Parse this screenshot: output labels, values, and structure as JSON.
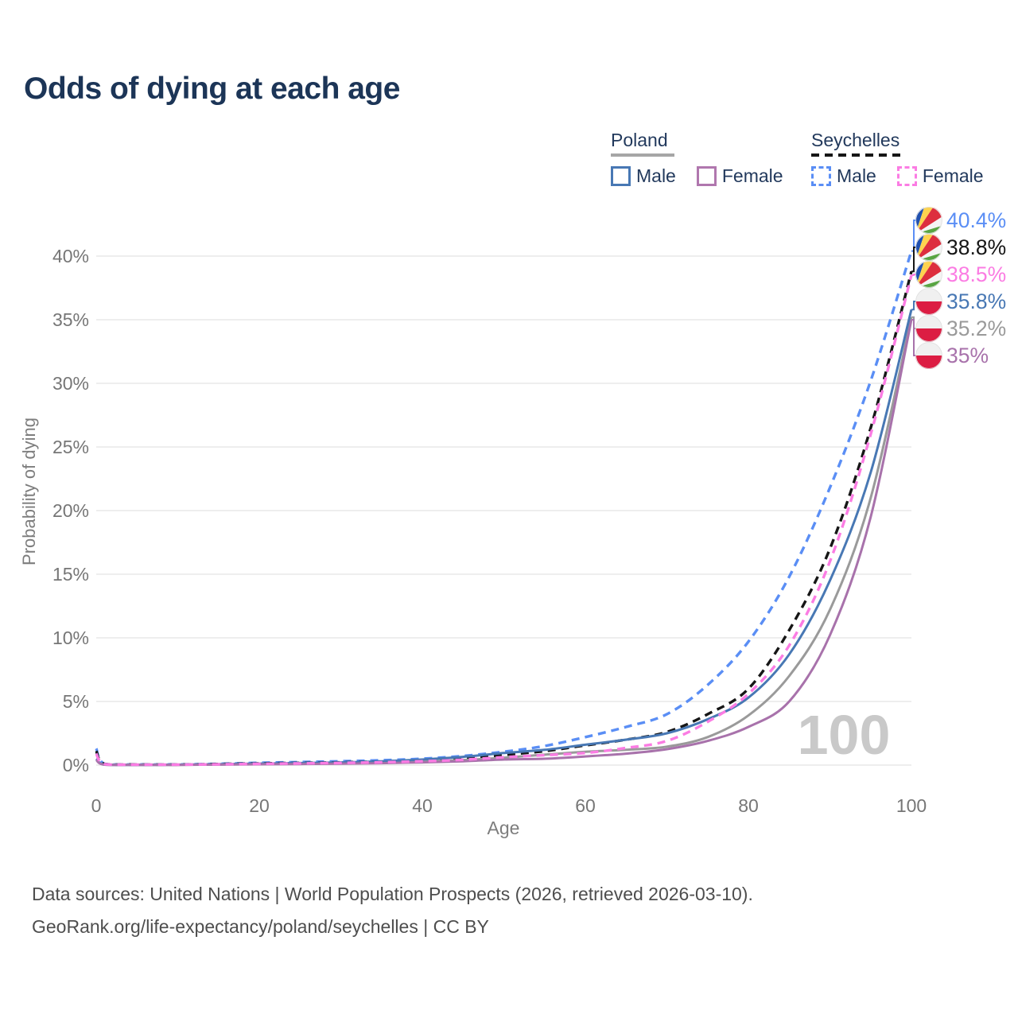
{
  "title": "Odds of dying at each age",
  "legend": {
    "poland": {
      "name": "Poland",
      "line_style": "solid",
      "underline_color": "#a6a6a6",
      "male_label": "Male",
      "female_label": "Female",
      "male_color": "#4878b4",
      "female_color": "#b077ae"
    },
    "seychelles": {
      "name": "Seychelles",
      "line_style": "dashed",
      "underline_color": "#161616",
      "male_label": "Male",
      "female_label": "Female",
      "male_color": "#5a8ef5",
      "female_color": "#fb7ce3"
    }
  },
  "watermark_age": "100",
  "footer": {
    "line1": "Data sources: United Nations | World Population Prospects (2026, retrieved 2026-03-10).",
    "line2": "GeoRank.org/life-expectancy/poland/seychelles | CC BY"
  },
  "chart_data": {
    "type": "line",
    "title": "Odds of dying at each age",
    "xlabel": "Age",
    "ylabel": "Probability of dying",
    "xlim": [
      0,
      100
    ],
    "ylim": [
      0,
      42.5
    ],
    "x_ticks": [
      0,
      20,
      40,
      60,
      80,
      100
    ],
    "y_ticks": [
      0,
      5,
      10,
      15,
      20,
      25,
      30,
      35,
      40
    ],
    "y_tick_suffix": "%",
    "grid": "horizontal",
    "legend_position": "top-right",
    "ages": [
      0,
      1,
      5,
      10,
      15,
      20,
      25,
      30,
      35,
      40,
      45,
      50,
      55,
      60,
      65,
      70,
      75,
      80,
      85,
      90,
      95,
      100
    ],
    "series": [
      {
        "name": "Seychelles male",
        "country": "Seychelles",
        "flag": "seychelles",
        "color": "#5a8ef5",
        "dashed": true,
        "end_label": "40.4%",
        "end_value": 40.4,
        "values": [
          1.3,
          0.1,
          0.05,
          0.05,
          0.1,
          0.18,
          0.24,
          0.3,
          0.38,
          0.5,
          0.72,
          1.05,
          1.5,
          2.2,
          3.0,
          4.0,
          6.3,
          9.7,
          14.8,
          21.8,
          30.2,
          40.4
        ]
      },
      {
        "name": "Seychelles both sexes",
        "country": "Seychelles",
        "flag": "seychelles",
        "color": "#161616",
        "dashed": true,
        "end_label": "38.8%",
        "end_value": 38.8,
        "values": [
          1.1,
          0.09,
          0.04,
          0.04,
          0.08,
          0.13,
          0.17,
          0.22,
          0.28,
          0.38,
          0.55,
          0.8,
          1.1,
          1.55,
          2.0,
          2.6,
          4.0,
          6.0,
          10.6,
          17.0,
          26.5,
          38.8
        ]
      },
      {
        "name": "Seychelles female",
        "country": "Seychelles",
        "flag": "seychelles",
        "color": "#fb7ce3",
        "dashed": true,
        "end_label": "38.5%",
        "end_value": 38.5,
        "values": [
          0.9,
          0.08,
          0.04,
          0.04,
          0.06,
          0.1,
          0.13,
          0.17,
          0.22,
          0.3,
          0.42,
          0.62,
          0.78,
          0.95,
          1.35,
          1.9,
          3.4,
          5.6,
          9.4,
          16.0,
          26.0,
          38.5
        ]
      },
      {
        "name": "Poland male",
        "country": "Poland",
        "flag": "poland",
        "color": "#4878b4",
        "dashed": false,
        "end_label": "35.8%",
        "end_value": 35.8,
        "values": [
          0.5,
          0.04,
          0.02,
          0.03,
          0.07,
          0.12,
          0.16,
          0.21,
          0.3,
          0.44,
          0.65,
          0.95,
          1.2,
          1.6,
          2.0,
          2.5,
          3.6,
          5.3,
          8.7,
          14.5,
          23.0,
          35.8
        ]
      },
      {
        "name": "Poland both sexes",
        "country": "Poland",
        "flag": "poland",
        "color": "#9a9a9a",
        "dashed": false,
        "end_label": "35.2%",
        "end_value": 35.2,
        "values": [
          0.45,
          0.04,
          0.02,
          0.02,
          0.05,
          0.08,
          0.1,
          0.13,
          0.19,
          0.27,
          0.4,
          0.58,
          0.82,
          1.05,
          1.2,
          1.45,
          2.2,
          3.9,
          7.0,
          12.2,
          21.0,
          35.2
        ]
      },
      {
        "name": "Poland female",
        "country": "Poland",
        "flag": "poland",
        "color": "#a872ab",
        "dashed": false,
        "end_label": "35%",
        "end_value": 35.0,
        "values": [
          0.4,
          0.03,
          0.02,
          0.02,
          0.04,
          0.06,
          0.08,
          0.11,
          0.15,
          0.21,
          0.3,
          0.44,
          0.5,
          0.68,
          0.9,
          1.25,
          1.9,
          3.0,
          5.0,
          10.2,
          19.5,
          35.0
        ]
      }
    ]
  }
}
